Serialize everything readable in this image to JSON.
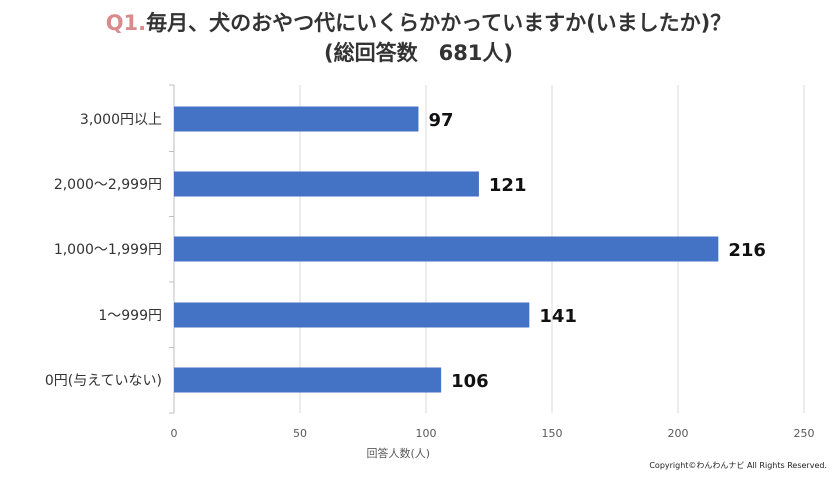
{
  "title": {
    "prefix": "Q1.",
    "line1": "毎月、犬のおやつ代にいくらかかっていますか(いましたか)？",
    "line2": "(総回答数　681人)"
  },
  "copyright": "Copyright©わんわんナビ All Rights Reserved.",
  "colors": {
    "bar": "#4472c4",
    "title_prefix": "#d98a8a"
  },
  "chart_data": {
    "type": "bar",
    "orientation": "horizontal",
    "categories": [
      "3,000円以上",
      "2,000～2,999円",
      "1,000～1,999円",
      "1～999円",
      "0円(与えていない)"
    ],
    "values": [
      97,
      121,
      216,
      141,
      106
    ],
    "xlabel": "回答人数(人)",
    "xlim": [
      0,
      250
    ],
    "xticks": [
      0,
      50,
      100,
      150,
      200,
      250
    ],
    "grid": true,
    "data_labels": true
  }
}
